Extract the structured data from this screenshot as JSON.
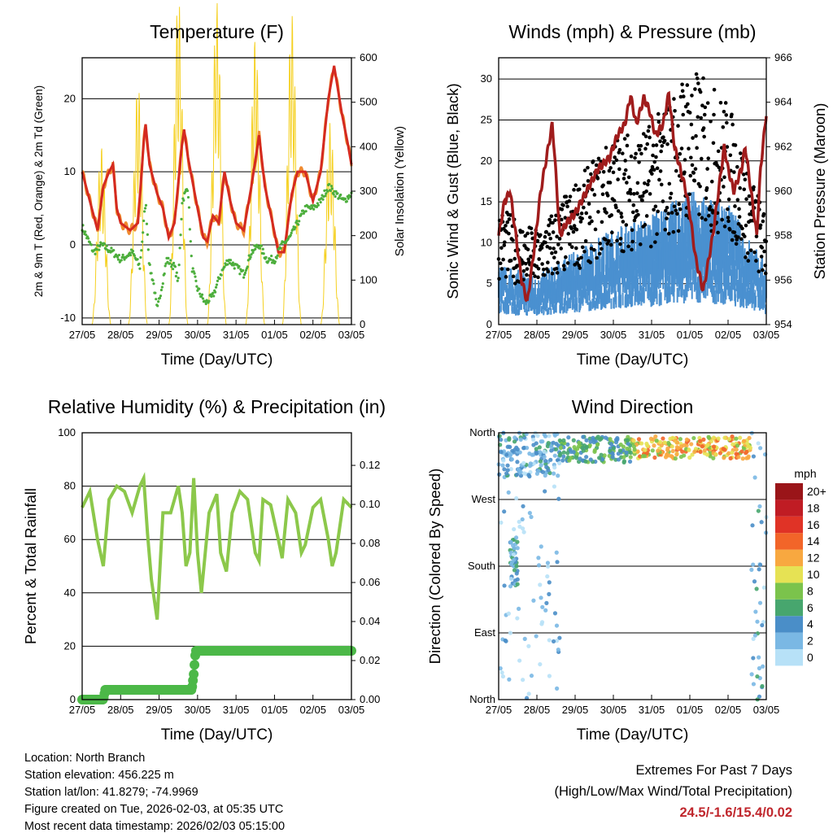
{
  "chart_data": [
    {
      "type": "line",
      "title": "Temperature (F)",
      "xlabel": "Time (Day/UTC)",
      "ylabel": "2m & 9m T (Red, Orange) & 2m Td (Green)",
      "ylabel_right": "Solar Insolation (Yellow)",
      "xticks": [
        "27/05",
        "28/05",
        "29/05",
        "30/05",
        "31/05",
        "01/05",
        "02/05",
        "03/05"
      ],
      "xlim": [
        0,
        7
      ],
      "ylim": [
        -10.9,
        25.6
      ],
      "yticks": [
        -10,
        0,
        10,
        20
      ],
      "ylim_right": [
        0,
        600
      ],
      "yticks_right": [
        0,
        100,
        200,
        300,
        400,
        500,
        600
      ],
      "series": [
        {
          "name": "2m T",
          "color": "#d42a20",
          "x": [
            0,
            0.25,
            0.4,
            0.55,
            0.7,
            0.8,
            0.9,
            1.0,
            1.25,
            1.45,
            1.6,
            1.65,
            1.75,
            1.95,
            2.1,
            2.25,
            2.4,
            2.6,
            2.65,
            2.75,
            3.0,
            3.15,
            3.25,
            3.4,
            3.55,
            3.7,
            3.85,
            4.0,
            4.2,
            4.4,
            4.6,
            4.75,
            4.95,
            5.1,
            5.25,
            5.45,
            5.6,
            5.8,
            6.0,
            6.2,
            6.4,
            6.55,
            6.75,
            6.9,
            7.0
          ],
          "y": [
            10,
            5,
            2,
            8,
            10,
            11,
            5,
            3,
            2,
            3,
            14,
            16.5,
            11,
            7,
            5,
            1,
            3,
            14,
            15.8,
            12,
            5,
            1,
            0.5,
            4,
            3,
            10,
            6,
            3,
            2,
            8,
            15,
            8,
            3,
            -1,
            -1,
            7,
            10,
            10,
            6,
            10,
            20,
            24.5,
            18,
            14,
            11
          ]
        },
        {
          "name": "2m Td",
          "color": "#4cae3c",
          "x": [
            0,
            0.3,
            0.5,
            0.8,
            1.0,
            1.3,
            1.5,
            1.65,
            1.75,
            1.85,
            1.95,
            2.2,
            2.4,
            2.5,
            2.6,
            2.75,
            2.85,
            3.0,
            3.2,
            3.4,
            3.6,
            3.8,
            4.0,
            4.2,
            4.4,
            4.6,
            4.8,
            5.0,
            5.2,
            5.4,
            5.6,
            5.8,
            6.0,
            6.2,
            6.4,
            6.6,
            6.8,
            7.0
          ],
          "y": [
            2.5,
            -1,
            0,
            -1,
            -2,
            -1,
            -3,
            6,
            -3,
            -5,
            -9,
            -2,
            -3,
            -5,
            6,
            8,
            -3,
            -6,
            -8,
            -7,
            -4,
            -2,
            -3,
            -4,
            -1,
            0,
            -2,
            -2,
            0,
            1,
            3,
            5,
            5,
            6,
            8,
            7,
            6,
            7
          ]
        },
        {
          "name": "Solar Insolation",
          "color": "#f5d020",
          "axis": "right",
          "peaks_x": [
            0.5,
            1.45,
            2.5,
            3.5,
            4.5,
            5.45,
            6.45
          ],
          "peaks_y": [
            310,
            420,
            570,
            560,
            500,
            540,
            350
          ]
        }
      ]
    },
    {
      "type": "scatter+line",
      "title": "Winds (mph) & Pressure (mb)",
      "xlabel": "Time (Day/UTC)",
      "ylabel": "Sonic Wind & Gust (Blue, Black)",
      "ylabel_right": "Station Pressure (Maroon)",
      "xticks": [
        "27/05",
        "28/05",
        "29/05",
        "30/05",
        "31/05",
        "01/05",
        "02/05",
        "03/05"
      ],
      "xlim": [
        0,
        7
      ],
      "ylim": [
        0,
        32.6
      ],
      "yticks": [
        0,
        5,
        10,
        15,
        20,
        25,
        30
      ],
      "ylim_right": [
        954,
        966
      ],
      "yticks_right": [
        954,
        956,
        958,
        960,
        962,
        964,
        966
      ],
      "series": [
        {
          "name": "Pressure",
          "color": "#a01c1c",
          "axis": "right",
          "x": [
            0,
            0.15,
            0.3,
            0.45,
            0.6,
            0.75,
            0.9,
            1.1,
            1.4,
            1.45,
            1.6,
            1.75,
            2.0,
            2.3,
            2.6,
            2.9,
            3.1,
            3.3,
            3.45,
            3.6,
            3.8,
            3.95,
            4.1,
            4.3,
            4.45,
            4.6,
            4.75,
            4.9,
            5.0,
            5.15,
            5.35,
            5.5,
            5.6,
            5.75,
            5.9,
            6.0,
            6.15,
            6.35,
            6.45,
            6.6,
            6.75,
            6.85,
            7.0
          ],
          "y": [
            958,
            959.5,
            960,
            958,
            956,
            955,
            957,
            960,
            963,
            962,
            958,
            958.5,
            959,
            960,
            961,
            961.5,
            962.5,
            963,
            964.3,
            963,
            964.2,
            963.6,
            962.5,
            963,
            964.4,
            962,
            961,
            960,
            959,
            957,
            955.5,
            957,
            958,
            960,
            962,
            961,
            960,
            961,
            962,
            960,
            958,
            961,
            963.5
          ]
        },
        {
          "name": "Sonic Wind",
          "color": "#4a90d0",
          "x": [
            0,
            1,
            2,
            3,
            4,
            5,
            6,
            7
          ],
          "y": [
            5,
            4,
            6,
            8,
            9,
            11,
            10,
            5
          ]
        },
        {
          "name": "Gust",
          "color": "#000000",
          "x": [
            0,
            1,
            2,
            3,
            4,
            5,
            6,
            7
          ],
          "y": [
            10,
            8,
            12,
            16,
            17,
            22,
            19,
            9
          ],
          "max": 30.6
        }
      ]
    },
    {
      "type": "line",
      "title": "Relative Humidity (%) & Precipitation (in)",
      "xlabel": "Time (Day/UTC)",
      "ylabel": "Percent & Total Rainfall",
      "xticks": [
        "27/05",
        "28/05",
        "29/05",
        "30/05",
        "31/05",
        "01/05",
        "02/05",
        "03/05"
      ],
      "xlim": [
        0,
        7
      ],
      "ylim": [
        0,
        100
      ],
      "yticks": [
        0,
        20,
        40,
        60,
        80,
        100
      ],
      "ylim_right": [
        0,
        0.1367
      ],
      "yticks_right": [
        "0.00",
        "0.02",
        "0.04",
        "0.06",
        "0.08",
        "0.10",
        "0.12"
      ],
      "series": [
        {
          "name": "RH",
          "color": "#8cc84b",
          "x": [
            0,
            0.2,
            0.4,
            0.55,
            0.7,
            0.9,
            1.1,
            1.3,
            1.5,
            1.6,
            1.7,
            1.8,
            1.95,
            2.1,
            2.3,
            2.5,
            2.6,
            2.7,
            2.8,
            2.9,
            3.0,
            3.1,
            3.3,
            3.5,
            3.6,
            3.75,
            3.9,
            4.1,
            4.3,
            4.5,
            4.6,
            4.7,
            4.9,
            5.1,
            5.2,
            5.35,
            5.55,
            5.7,
            5.8,
            6.0,
            6.2,
            6.4,
            6.5,
            6.6,
            6.8,
            7.0
          ],
          "y": [
            72,
            78,
            60,
            50,
            75,
            80,
            78,
            70,
            80,
            83,
            62,
            45,
            30,
            70,
            70,
            80,
            70,
            50,
            55,
            83,
            55,
            40,
            70,
            77,
            55,
            48,
            70,
            78,
            75,
            55,
            52,
            75,
            73,
            60,
            53,
            75,
            70,
            55,
            58,
            72,
            75,
            60,
            50,
            55,
            75,
            72
          ]
        },
        {
          "name": "Total Precipitation",
          "color": "#4cb848",
          "axis": "right",
          "x": [
            0,
            0.55,
            0.6,
            2.85,
            2.9,
            2.95,
            7.0
          ],
          "y": [
            0,
            0,
            0.005,
            0.005,
            0.013,
            0.025,
            0.025
          ]
        }
      ]
    },
    {
      "type": "scatter",
      "title": "Wind Direction",
      "xlabel": "Time (Day/UTC)",
      "ylabel": "Direction (Colored By Speed)",
      "xticks": [
        "27/05",
        "28/05",
        "29/05",
        "30/05",
        "31/05",
        "01/05",
        "02/05",
        "03/05"
      ],
      "xlim": [
        0,
        7
      ],
      "yticks": [
        "North",
        "East",
        "South",
        "West",
        "North"
      ],
      "ylim": [
        0,
        360
      ],
      "legend": {
        "title": "mph",
        "labels": [
          "0",
          "2",
          "4",
          "6",
          "8",
          "10",
          "12",
          "14",
          "16",
          "18",
          "20+"
        ],
        "colors": [
          "#b7e1f7",
          "#7ab8e4",
          "#4a8ec8",
          "#47a66e",
          "#7bc34c",
          "#e6e254",
          "#f8a840",
          "#f26529",
          "#e03326",
          "#c01c24",
          "#9a1519"
        ]
      },
      "clusters": [
        {
          "x0": 0,
          "x1": 1.6,
          "dir0": 300,
          "dir1": 360,
          "spd": 3,
          "n": 160
        },
        {
          "x0": 0.3,
          "x1": 0.5,
          "dir0": 150,
          "dir1": 220,
          "spd": 4,
          "n": 40
        },
        {
          "x0": 0,
          "x1": 1.6,
          "dir0": 0,
          "dir1": 290,
          "spd": 1.5,
          "n": 70
        },
        {
          "x0": 1.6,
          "x1": 3.5,
          "dir0": 320,
          "dir1": 355,
          "spd": 6,
          "n": 150
        },
        {
          "x0": 3.5,
          "x1": 6.6,
          "dir0": 325,
          "dir1": 355,
          "spd": 11,
          "n": 220
        },
        {
          "x0": 6.6,
          "x1": 7,
          "dir0": 0,
          "dir1": 360,
          "spd": 3,
          "n": 40
        }
      ]
    }
  ],
  "info": {
    "location": "Location: North Branch",
    "elevation": "Station elevation: 456.225 m",
    "latlon": "Station lat/lon: 41.8279; -74.9969",
    "created": "Figure created on Tue, 2026-02-03, at 05:35 UTC",
    "recent": "Most recent data timestamp: 2026/02/03 05:15:00"
  },
  "extremes": {
    "title": "Extremes For Past 7 Days",
    "subtitle": "(High/Low/Max Wind/Total Precipitation)",
    "values": "24.5/-1.6/15.4/0.02"
  }
}
